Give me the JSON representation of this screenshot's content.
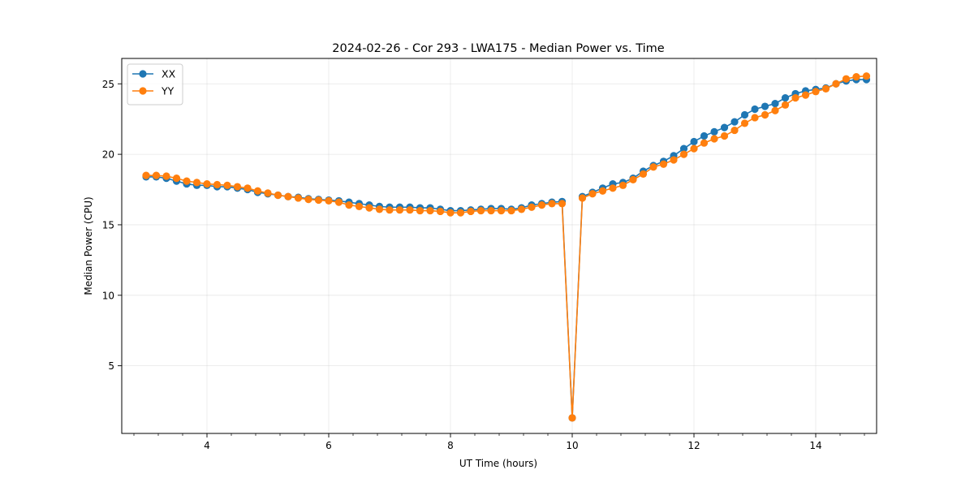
{
  "chart_data": {
    "type": "line",
    "title": "2024-02-26 - Cor 293 - LWA175 - Median Power vs. Time",
    "xlabel": "UT Time (hours)",
    "ylabel": "Median Power (CPU)",
    "xlim": [
      2.6,
      15.0
    ],
    "ylim": [
      0.2,
      26.8
    ],
    "xticks": [
      4,
      6,
      8,
      10,
      12,
      14
    ],
    "xtick_labels": [
      "4",
      "6",
      "8",
      "10",
      "12",
      "14"
    ],
    "yticks": [
      5,
      10,
      15,
      20,
      25
    ],
    "ytick_labels": [
      "5",
      "10",
      "15",
      "20",
      "25"
    ],
    "x_minor_step": 0.4,
    "grid": true,
    "legend_position": "top-left",
    "x": [
      3.0,
      3.1667,
      3.3333,
      3.5,
      3.6667,
      3.8333,
      4.0,
      4.1667,
      4.3333,
      4.5,
      4.6667,
      4.8333,
      5.0,
      5.1667,
      5.3333,
      5.5,
      5.6667,
      5.8333,
      6.0,
      6.1667,
      6.3333,
      6.5,
      6.6667,
      6.8333,
      7.0,
      7.1667,
      7.3333,
      7.5,
      7.6667,
      7.8333,
      8.0,
      8.1667,
      8.3333,
      8.5,
      8.6667,
      8.8333,
      9.0,
      9.1667,
      9.3333,
      9.5,
      9.6667,
      9.8333,
      10.0,
      10.1667,
      10.3333,
      10.5,
      10.6667,
      10.8333,
      11.0,
      11.1667,
      11.3333,
      11.5,
      11.6667,
      11.8333,
      12.0,
      12.1667,
      12.3333,
      12.5,
      12.6667,
      12.8333,
      13.0,
      13.1667,
      13.3333,
      13.5,
      13.6667,
      13.8333,
      14.0,
      14.1667,
      14.3333,
      14.5,
      14.6667,
      14.8333
    ],
    "series": [
      {
        "name": "XX",
        "color": "#1f77b4",
        "values": [
          18.4,
          18.4,
          18.3,
          18.1,
          17.9,
          17.8,
          17.8,
          17.7,
          17.7,
          17.6,
          17.5,
          17.3,
          17.2,
          17.1,
          17.0,
          16.95,
          16.85,
          16.8,
          16.75,
          16.7,
          16.6,
          16.5,
          16.4,
          16.3,
          16.25,
          16.25,
          16.25,
          16.2,
          16.2,
          16.1,
          16.0,
          16.0,
          16.05,
          16.1,
          16.15,
          16.15,
          16.1,
          16.2,
          16.4,
          16.5,
          16.6,
          16.65,
          1.3,
          17.0,
          17.3,
          17.6,
          17.9,
          18.0,
          18.3,
          18.8,
          19.2,
          19.5,
          19.9,
          20.4,
          20.9,
          21.3,
          21.6,
          21.9,
          22.3,
          22.8,
          23.2,
          23.4,
          23.6,
          24.0,
          24.3,
          24.5,
          24.6,
          24.7,
          25.0,
          25.2,
          25.3,
          25.3
        ]
      },
      {
        "name": "YY",
        "color": "#ff7f0e",
        "values": [
          18.5,
          18.5,
          18.45,
          18.3,
          18.1,
          18.0,
          17.9,
          17.85,
          17.8,
          17.7,
          17.6,
          17.4,
          17.25,
          17.1,
          17.0,
          16.9,
          16.8,
          16.75,
          16.7,
          16.6,
          16.4,
          16.3,
          16.2,
          16.1,
          16.05,
          16.05,
          16.05,
          16.0,
          16.0,
          15.95,
          15.85,
          15.85,
          15.95,
          16.0,
          16.0,
          16.0,
          16.0,
          16.1,
          16.25,
          16.4,
          16.5,
          16.5,
          1.3,
          16.9,
          17.2,
          17.4,
          17.6,
          17.8,
          18.2,
          18.6,
          19.1,
          19.3,
          19.6,
          20.0,
          20.4,
          20.8,
          21.1,
          21.3,
          21.7,
          22.2,
          22.6,
          22.8,
          23.1,
          23.5,
          24.0,
          24.2,
          24.45,
          24.65,
          25.0,
          25.35,
          25.5,
          25.55
        ]
      }
    ]
  }
}
